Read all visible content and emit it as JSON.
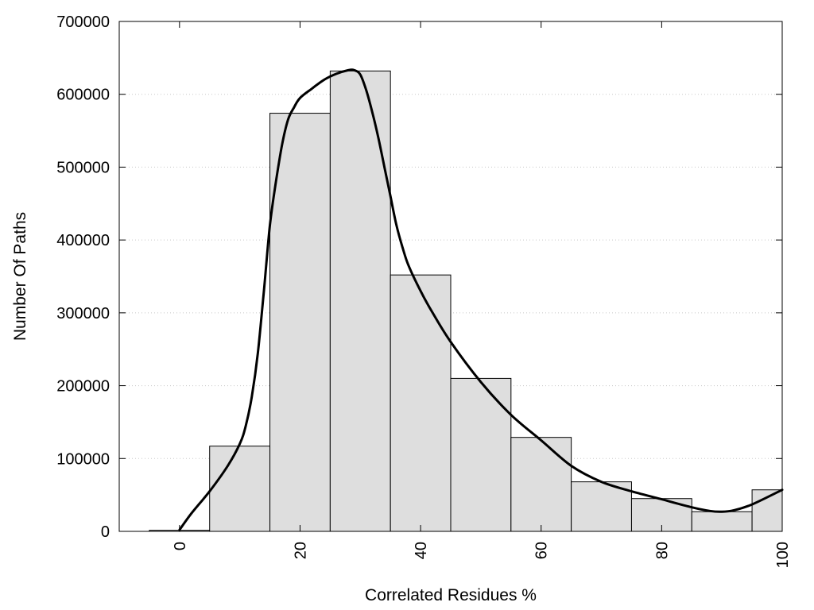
{
  "chart_data": {
    "type": "bar",
    "title": "",
    "xlabel": "Correlated Residues %",
    "ylabel": "Number Of Paths",
    "xlim": [
      -10,
      100
    ],
    "ylim": [
      0,
      700000
    ],
    "x_ticks": [
      0,
      20,
      40,
      60,
      80,
      100
    ],
    "y_ticks": [
      0,
      100000,
      200000,
      300000,
      400000,
      500000,
      600000,
      700000
    ],
    "bin_width": 10,
    "grid": "horizontal-dotted",
    "bar_color": "#dedede",
    "line_color": "#000000",
    "bins": [
      {
        "center": 0,
        "value": 1500
      },
      {
        "center": 10,
        "value": 117000
      },
      {
        "center": 20,
        "value": 574000
      },
      {
        "center": 30,
        "value": 632000
      },
      {
        "center": 40,
        "value": 352000
      },
      {
        "center": 50,
        "value": 210000
      },
      {
        "center": 60,
        "value": 129000
      },
      {
        "center": 70,
        "value": 68000
      },
      {
        "center": 80,
        "value": 45000
      },
      {
        "center": 90,
        "value": 27000
      },
      {
        "center": 100,
        "value": 57000
      }
    ],
    "curve": {
      "x": [
        0,
        2,
        5,
        8,
        10,
        11,
        12,
        13,
        14,
        15,
        16,
        17,
        18,
        19,
        20,
        22,
        24,
        26,
        28,
        29,
        30,
        31,
        32,
        33,
        34,
        35,
        36,
        37,
        38,
        40,
        42,
        45,
        50,
        55,
        60,
        65,
        70,
        75,
        80,
        85,
        88,
        90,
        92,
        95,
        100
      ],
      "y": [
        2000,
        25000,
        55000,
        90000,
        120000,
        145000,
        185000,
        245000,
        330000,
        420000,
        480000,
        530000,
        565000,
        582000,
        595000,
        608000,
        620000,
        628000,
        633000,
        633000,
        627000,
        605000,
        575000,
        540000,
        500000,
        460000,
        420000,
        390000,
        365000,
        330000,
        300000,
        260000,
        205000,
        160000,
        125000,
        90000,
        68000,
        55000,
        44000,
        33000,
        28000,
        27000,
        29000,
        37000,
        57000
      ]
    }
  }
}
